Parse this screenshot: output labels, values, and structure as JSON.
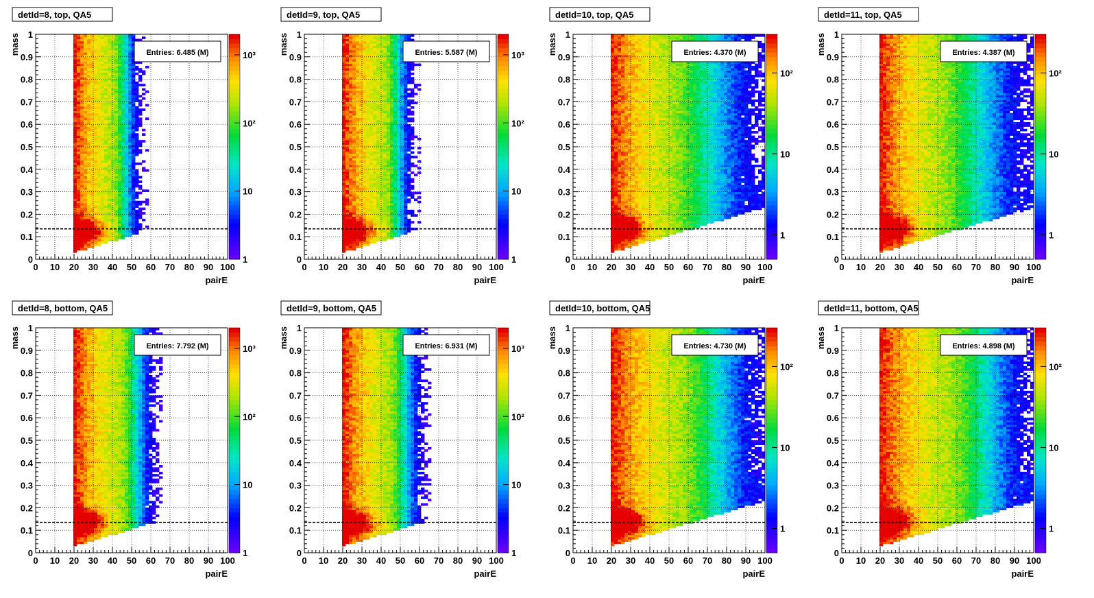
{
  "chart_data": [
    {
      "type": "heatmap",
      "title": "detId=8, top, QA5",
      "xlabel": "pairE",
      "ylabel": "mass",
      "stats_label": "Entries: 6.485 (M)",
      "xlim": [
        0,
        100
      ],
      "ylim": [
        0,
        1
      ],
      "xticks": [
        "0",
        "10",
        "20",
        "30",
        "40",
        "50",
        "60",
        "70",
        "80",
        "90",
        "100"
      ],
      "yticks": [
        "0",
        "0.1",
        "0.2",
        "0.3",
        "0.4",
        "0.5",
        "0.6",
        "0.7",
        "0.8",
        "0.9",
        "1"
      ],
      "z_scale": "log",
      "z_range": [
        1,
        2000
      ],
      "z_ticks": [
        {
          "label": "1",
          "value": 1
        },
        {
          "label": "10",
          "value": 10
        },
        {
          "label": "10²",
          "value": 100
        },
        {
          "label": "10³",
          "value": 1000
        }
      ],
      "reference_line_y": 0.135,
      "grid": true,
      "data_x_start": 20,
      "tail_energy": 50,
      "band_energy": 40,
      "peak_mass": 0.125
    },
    {
      "type": "heatmap",
      "title": "detId=9, top, QA5",
      "xlabel": "pairE",
      "ylabel": "mass",
      "stats_label": "Entries: 5.587 (M)",
      "xlim": [
        0,
        100
      ],
      "ylim": [
        0,
        1
      ],
      "xticks": [
        "0",
        "10",
        "20",
        "30",
        "40",
        "50",
        "60",
        "70",
        "80",
        "90",
        "100"
      ],
      "yticks": [
        "0",
        "0.1",
        "0.2",
        "0.3",
        "0.4",
        "0.5",
        "0.6",
        "0.7",
        "0.8",
        "0.9",
        "1"
      ],
      "z_scale": "log",
      "z_range": [
        1,
        2000
      ],
      "z_ticks": [
        {
          "label": "1",
          "value": 1
        },
        {
          "label": "10",
          "value": 10
        },
        {
          "label": "10²",
          "value": 100
        },
        {
          "label": "10³",
          "value": 1000
        }
      ],
      "reference_line_y": 0.135,
      "grid": true,
      "data_x_start": 20,
      "tail_energy": 52,
      "band_energy": 42,
      "peak_mass": 0.125
    },
    {
      "type": "heatmap",
      "title": "detId=10, top, QA5",
      "xlabel": "pairE",
      "ylabel": "mass",
      "stats_label": "Entries: 4.370 (M)",
      "xlim": [
        0,
        100
      ],
      "ylim": [
        0,
        1
      ],
      "xticks": [
        "0",
        "10",
        "20",
        "30",
        "40",
        "50",
        "60",
        "70",
        "80",
        "90",
        "100"
      ],
      "yticks": [
        "0",
        "0.1",
        "0.2",
        "0.3",
        "0.4",
        "0.5",
        "0.6",
        "0.7",
        "0.8",
        "0.9",
        "1"
      ],
      "z_scale": "log",
      "z_range": [
        0.5,
        300
      ],
      "z_ticks": [
        {
          "label": "1",
          "value": 1
        },
        {
          "label": "10",
          "value": 10
        },
        {
          "label": "10²",
          "value": 100
        }
      ],
      "reference_line_y": 0.135,
      "grid": true,
      "data_x_start": 20,
      "tail_energy": 100,
      "band_energy": 50,
      "peak_mass": 0.14
    },
    {
      "type": "heatmap",
      "title": "detId=11, top, QA5",
      "xlabel": "pairE",
      "ylabel": "mass",
      "stats_label": "Entries: 4.387 (M)",
      "xlim": [
        0,
        100
      ],
      "ylim": [
        0,
        1
      ],
      "xticks": [
        "0",
        "10",
        "20",
        "30",
        "40",
        "50",
        "60",
        "70",
        "80",
        "90",
        "100"
      ],
      "yticks": [
        "0",
        "0.1",
        "0.2",
        "0.3",
        "0.4",
        "0.5",
        "0.6",
        "0.7",
        "0.8",
        "0.9",
        "1"
      ],
      "z_scale": "log",
      "z_range": [
        0.5,
        300
      ],
      "z_ticks": [
        {
          "label": "1",
          "value": 1
        },
        {
          "label": "10",
          "value": 10
        },
        {
          "label": "10²",
          "value": 100
        }
      ],
      "reference_line_y": 0.135,
      "grid": true,
      "data_x_start": 20,
      "tail_energy": 100,
      "band_energy": 50,
      "peak_mass": 0.135
    },
    {
      "type": "heatmap",
      "title": "detId=8, bottom, QA5",
      "xlabel": "pairE",
      "ylabel": "mass",
      "stats_label": "Entries: 7.792 (M)",
      "xlim": [
        0,
        100
      ],
      "ylim": [
        0,
        1
      ],
      "xticks": [
        "0",
        "10",
        "20",
        "30",
        "40",
        "50",
        "60",
        "70",
        "80",
        "90",
        "100"
      ],
      "yticks": [
        "0",
        "0.1",
        "0.2",
        "0.3",
        "0.4",
        "0.5",
        "0.6",
        "0.7",
        "0.8",
        "0.9",
        "1"
      ],
      "z_scale": "log",
      "z_range": [
        1,
        2000
      ],
      "z_ticks": [
        {
          "label": "1",
          "value": 1
        },
        {
          "label": "10",
          "value": 10
        },
        {
          "label": "10²",
          "value": 100
        },
        {
          "label": "10³",
          "value": 1000
        }
      ],
      "reference_line_y": 0.135,
      "grid": true,
      "data_x_start": 20,
      "tail_energy": 58,
      "band_energy": 44,
      "peak_mass": 0.135
    },
    {
      "type": "heatmap",
      "title": "detId=9, bottom, QA5",
      "xlabel": "pairE",
      "ylabel": "mass",
      "stats_label": "Entries: 6.931 (M)",
      "xlim": [
        0,
        100
      ],
      "ylim": [
        0,
        1
      ],
      "xticks": [
        "0",
        "10",
        "20",
        "30",
        "40",
        "50",
        "60",
        "70",
        "80",
        "90",
        "100"
      ],
      "yticks": [
        "0",
        "0.1",
        "0.2",
        "0.3",
        "0.4",
        "0.5",
        "0.6",
        "0.7",
        "0.8",
        "0.9",
        "1"
      ],
      "z_scale": "log",
      "z_range": [
        1,
        2000
      ],
      "z_ticks": [
        {
          "label": "1",
          "value": 1
        },
        {
          "label": "10",
          "value": 10
        },
        {
          "label": "10²",
          "value": 100
        },
        {
          "label": "10³",
          "value": 1000
        }
      ],
      "reference_line_y": 0.135,
      "grid": true,
      "data_x_start": 20,
      "tail_energy": 58,
      "band_energy": 44,
      "peak_mass": 0.13
    },
    {
      "type": "heatmap",
      "title": "detId=10, bottom, QA5",
      "xlabel": "pairE",
      "ylabel": "mass",
      "stats_label": "Entries: 4.730 (M)",
      "xlim": [
        0,
        100
      ],
      "ylim": [
        0,
        1
      ],
      "xticks": [
        "0",
        "10",
        "20",
        "30",
        "40",
        "50",
        "60",
        "70",
        "80",
        "90",
        "100"
      ],
      "yticks": [
        "0",
        "0.1",
        "0.2",
        "0.3",
        "0.4",
        "0.5",
        "0.6",
        "0.7",
        "0.8",
        "0.9",
        "1"
      ],
      "z_scale": "log",
      "z_range": [
        0.5,
        300
      ],
      "z_ticks": [
        {
          "label": "1",
          "value": 1
        },
        {
          "label": "10",
          "value": 10
        },
        {
          "label": "10²",
          "value": 100
        }
      ],
      "reference_line_y": 0.135,
      "grid": true,
      "data_x_start": 20,
      "tail_energy": 100,
      "band_energy": 55,
      "peak_mass": 0.14
    },
    {
      "type": "heatmap",
      "title": "detId=11, bottom, QA5",
      "xlabel": "pairE",
      "ylabel": "mass",
      "stats_label": "Entries: 4.898 (M)",
      "xlim": [
        0,
        100
      ],
      "ylim": [
        0,
        1
      ],
      "xticks": [
        "0",
        "10",
        "20",
        "30",
        "40",
        "50",
        "60",
        "70",
        "80",
        "90",
        "100"
      ],
      "yticks": [
        "0",
        "0.1",
        "0.2",
        "0.3",
        "0.4",
        "0.5",
        "0.6",
        "0.7",
        "0.8",
        "0.9",
        "1"
      ],
      "z_scale": "log",
      "z_range": [
        0.5,
        300
      ],
      "z_ticks": [
        {
          "label": "1",
          "value": 1
        },
        {
          "label": "10",
          "value": 10
        },
        {
          "label": "10²",
          "value": 100
        }
      ],
      "reference_line_y": 0.135,
      "grid": true,
      "data_x_start": 20,
      "tail_energy": 100,
      "band_energy": 55,
      "peak_mass": 0.14
    }
  ]
}
